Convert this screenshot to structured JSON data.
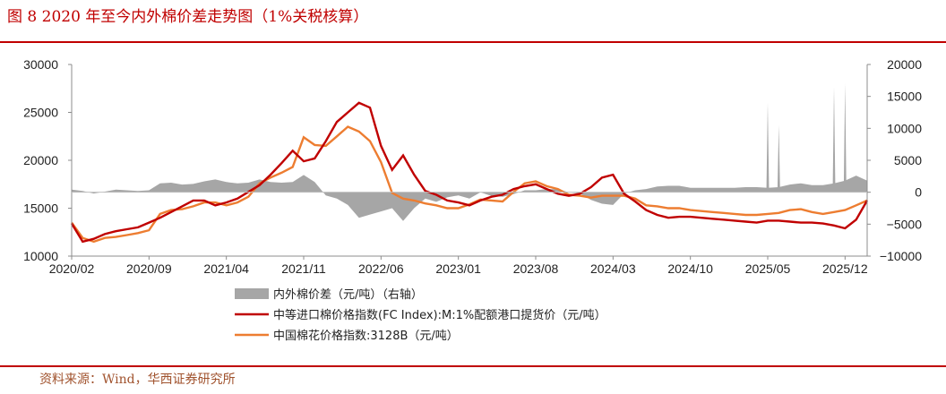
{
  "header": {
    "title": "图 8 2020 年至今内外棉价差走势图（1%关税核算）",
    "source": "资料来源：Wind，华西证券研究所"
  },
  "colors": {
    "accent": "#c00000",
    "import_index": "#c00000",
    "china_index": "#ed7d31",
    "spread": "#a6a6a6"
  },
  "chart_data": {
    "type": "line",
    "x_tick_labels": [
      "2020/02",
      "2020/09",
      "2021/04",
      "2021/11",
      "2022/06",
      "2023/01",
      "2023/08",
      "2024/03",
      "2024/10",
      "2025/05",
      "2025/12"
    ],
    "x_range": [
      "2020/02",
      "2026/02"
    ],
    "y_left": {
      "ticks": [
        10000,
        15000,
        20000,
        25000,
        30000
      ],
      "tick_labels": [
        "10000",
        "15000",
        "20000",
        "25000",
        "30000"
      ],
      "range": [
        10000,
        30000
      ]
    },
    "y_right": {
      "ticks": [
        -10000,
        -5000,
        0,
        5000,
        10000,
        15000,
        20000
      ],
      "tick_labels": [
        "−10000",
        "−5000",
        "0",
        "5000",
        "10000",
        "15000",
        "20000"
      ],
      "range": [
        -10000,
        20000
      ]
    },
    "legend": [
      "内外棉价差（元/吨）（右轴）",
      "中等进口棉价格指数(FC Index):M:1%配额港口提货价（元/吨）",
      "中国棉花价格指数:3128B（元/吨）"
    ],
    "legend_position": "bottom",
    "grid": false,
    "series": [
      {
        "name": "中等进口棉价格指数(FC Index):M:1%配额港口提货价（元/吨）",
        "axis": "left",
        "type": "line",
        "x": [
          "2020/02",
          "2020/03",
          "2020/04",
          "2020/05",
          "2020/06",
          "2020/07",
          "2020/08",
          "2020/09",
          "2020/10",
          "2020/11",
          "2020/12",
          "2021/01",
          "2021/02",
          "2021/03",
          "2021/04",
          "2021/05",
          "2021/06",
          "2021/07",
          "2021/08",
          "2021/09",
          "2021/10",
          "2021/11",
          "2021/12",
          "2022/01",
          "2022/02",
          "2022/03",
          "2022/04",
          "2022/05",
          "2022/06",
          "2022/07",
          "2022/08",
          "2022/09",
          "2022/10",
          "2022/11",
          "2022/12",
          "2023/01",
          "2023/02",
          "2023/03",
          "2023/04",
          "2023/05",
          "2023/06",
          "2023/07",
          "2023/08",
          "2023/09",
          "2023/10",
          "2023/11",
          "2023/12",
          "2024/01",
          "2024/02",
          "2024/03",
          "2024/04",
          "2024/05",
          "2024/06",
          "2024/07",
          "2024/08",
          "2024/09",
          "2024/10",
          "2024/11",
          "2024/12",
          "2025/01",
          "2025/02",
          "2025/03",
          "2025/04",
          "2025/05",
          "2025/06",
          "2025/07",
          "2025/08",
          "2025/09",
          "2025/10",
          "2025/11",
          "2025/12",
          "2026/01",
          "2026/02"
        ],
        "values": [
          13400,
          11500,
          11800,
          12300,
          12600,
          12800,
          13000,
          13500,
          14000,
          14600,
          15200,
          15800,
          15800,
          15300,
          15600,
          16000,
          16700,
          17400,
          18500,
          19700,
          21000,
          19900,
          20200,
          22000,
          24000,
          25000,
          26000,
          25500,
          21500,
          19000,
          20500,
          18500,
          16800,
          16400,
          15800,
          15600,
          15300,
          15800,
          16200,
          16400,
          17000,
          17300,
          17500,
          17000,
          16500,
          16300,
          16500,
          17200,
          18200,
          18500,
          16500,
          15700,
          14800,
          14300,
          14000,
          14100,
          14100,
          14000,
          13900,
          13800,
          13700,
          13600,
          13500,
          13700,
          13700,
          13600,
          13500,
          13500,
          13400,
          13200,
          12900,
          13800,
          15800
        ]
      },
      {
        "name": "中国棉花价格指数:3128B（元/吨）",
        "axis": "left",
        "type": "line",
        "x": [
          "2020/02",
          "2020/03",
          "2020/04",
          "2020/05",
          "2020/06",
          "2020/07",
          "2020/08",
          "2020/09",
          "2020/10",
          "2020/11",
          "2020/12",
          "2021/01",
          "2021/02",
          "2021/03",
          "2021/04",
          "2021/05",
          "2021/06",
          "2021/07",
          "2021/08",
          "2021/09",
          "2021/10",
          "2021/11",
          "2021/12",
          "2022/01",
          "2022/02",
          "2022/03",
          "2022/04",
          "2022/05",
          "2022/06",
          "2022/07",
          "2022/08",
          "2022/09",
          "2022/10",
          "2022/11",
          "2022/12",
          "2023/01",
          "2023/02",
          "2023/03",
          "2023/04",
          "2023/05",
          "2023/06",
          "2023/07",
          "2023/08",
          "2023/09",
          "2023/10",
          "2023/11",
          "2023/12",
          "2024/01",
          "2024/02",
          "2024/03",
          "2024/04",
          "2024/05",
          "2024/06",
          "2024/07",
          "2024/08",
          "2024/09",
          "2024/10",
          "2024/11",
          "2024/12",
          "2025/01",
          "2025/02",
          "2025/03",
          "2025/04",
          "2025/05",
          "2025/06",
          "2025/07",
          "2025/08",
          "2025/09",
          "2025/10",
          "2025/11",
          "2025/12",
          "2026/01",
          "2026/02"
        ],
        "values": [
          13500,
          11900,
          11500,
          11900,
          12000,
          12200,
          12400,
          12700,
          14400,
          14800,
          14900,
          15200,
          15600,
          15600,
          15300,
          15600,
          16200,
          17600,
          18200,
          18700,
          19300,
          22400,
          21600,
          21500,
          22500,
          23500,
          23000,
          22000,
          19800,
          16600,
          16000,
          15800,
          15500,
          15300,
          15000,
          15000,
          15400,
          15900,
          15800,
          15700,
          16700,
          17600,
          17800,
          17300,
          17000,
          16400,
          16300,
          16100,
          16300,
          16300,
          16300,
          16000,
          15300,
          15200,
          15000,
          15000,
          14800,
          14700,
          14600,
          14500,
          14400,
          14300,
          14300,
          14400,
          14500,
          14800,
          14900,
          14600,
          14400,
          14600,
          14800,
          15300,
          15800
        ]
      },
      {
        "name": "内外棉价差（元/吨）（右轴）",
        "axis": "right",
        "type": "area",
        "x": [
          "2020/02",
          "2020/03",
          "2020/04",
          "2020/05",
          "2020/06",
          "2020/07",
          "2020/08",
          "2020/09",
          "2020/10",
          "2020/11",
          "2020/12",
          "2021/01",
          "2021/02",
          "2021/03",
          "2021/04",
          "2021/05",
          "2021/06",
          "2021/07",
          "2021/08",
          "2021/09",
          "2021/10",
          "2021/11",
          "2021/12",
          "2022/01",
          "2022/02",
          "2022/03",
          "2022/04",
          "2022/05",
          "2022/06",
          "2022/07",
          "2022/08",
          "2022/09",
          "2022/10",
          "2022/11",
          "2022/12",
          "2023/01",
          "2023/02",
          "2023/03",
          "2023/04",
          "2023/05",
          "2023/06",
          "2023/07",
          "2023/08",
          "2023/09",
          "2023/10",
          "2023/11",
          "2023/12",
          "2024/01",
          "2024/02",
          "2024/03",
          "2024/04",
          "2024/05",
          "2024/06",
          "2024/07",
          "2024/08",
          "2024/09",
          "2024/10",
          "2024/11",
          "2024/12",
          "2025/01",
          "2025/02",
          "2025/03",
          "2025/04",
          "2025/05",
          "2025/06",
          "2025/07",
          "2025/08",
          "2025/09",
          "2025/10",
          "2025/11",
          "2025/12",
          "2026/01",
          "2026/02"
        ],
        "values": [
          400,
          200,
          -200,
          100,
          400,
          300,
          200,
          300,
          1400,
          1500,
          1200,
          1300,
          1700,
          2000,
          1600,
          1400,
          1500,
          2000,
          1600,
          1500,
          1600,
          2700,
          1600,
          -500,
          -1000,
          -2000,
          -4000,
          -3500,
          -3000,
          -2500,
          -4500,
          -2500,
          -1000,
          -1500,
          -800,
          -500,
          -1000,
          0,
          -600,
          -700,
          -300,
          300,
          300,
          500,
          500,
          0,
          -200,
          -1200,
          -1800,
          -2000,
          -200,
          300,
          500,
          900,
          1000,
          1000,
          700,
          700,
          700,
          700,
          700,
          800,
          800,
          700,
          800,
          1200,
          1400,
          1100,
          1100,
          1400,
          1800,
          2600,
          1800
        ]
      }
    ],
    "spikes_right_axis": [
      {
        "x": "2025/05",
        "value": 14000
      },
      {
        "x": "2025/06",
        "value": 10500
      },
      {
        "x": "2025/11",
        "value": 16500
      },
      {
        "x": "2025/12",
        "value": 17000
      }
    ]
  }
}
